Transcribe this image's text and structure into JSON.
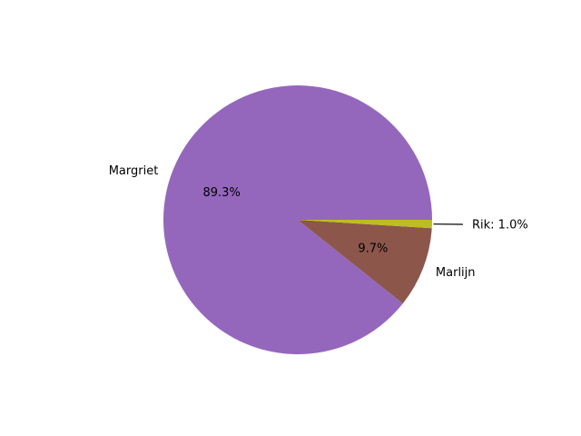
{
  "chart_data": {
    "type": "pie",
    "slices": [
      {
        "label": "Margriet",
        "value": 89.3,
        "pct_label": "89.3%",
        "color": "#9467bd"
      },
      {
        "label": "Marlijn",
        "value": 9.7,
        "pct_label": "9.7%",
        "color": "#8c564b"
      },
      {
        "label": "Rik",
        "value": 1.0,
        "pct_label": "Rik: 1.0%",
        "color": "#bcbd22"
      }
    ],
    "start_angle_deg": 0,
    "direction": "counterclockwise",
    "annotation": {
      "slice": "Rik",
      "text": "Rik: 1.0%",
      "has_leader_line": true
    }
  }
}
